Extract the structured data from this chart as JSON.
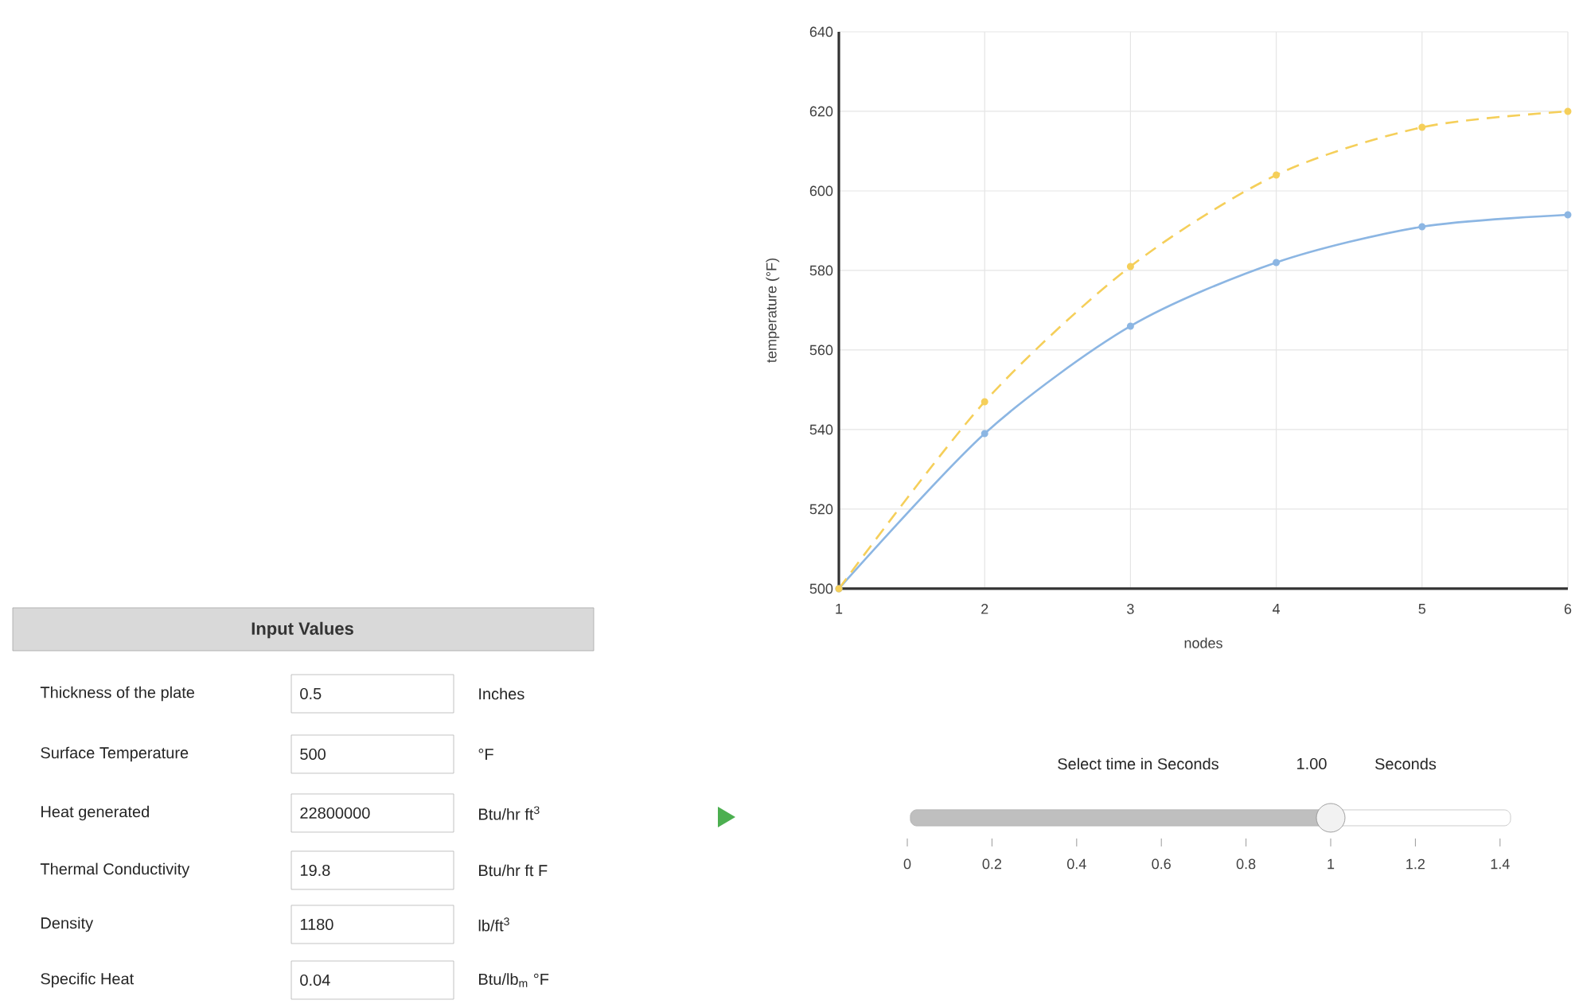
{
  "chart_data": {
    "type": "line",
    "xlabel": "nodes",
    "ylabel": "temperature (°F)",
    "x": [
      1,
      2,
      3,
      4,
      5,
      6
    ],
    "series": [
      {
        "color": "#f5cf5a",
        "line_style": "dashed",
        "values": [
          500,
          547,
          581,
          604,
          616,
          620
        ]
      },
      {
        "color": "#8cb6e3",
        "line_style": "solid",
        "values": [
          500,
          539,
          566,
          582,
          591,
          594
        ]
      }
    ],
    "xlim": [
      1,
      6
    ],
    "xticks": [
      1,
      2,
      3,
      4,
      5,
      6
    ],
    "ylim": [
      500,
      640
    ],
    "yticks": [
      500,
      520,
      540,
      560,
      580,
      600,
      620,
      640
    ],
    "grid": true,
    "marker": "circle",
    "annotations": [
      "Input Values",
      "Thickness of the plate",
      "0.5",
      "Inches",
      "Surface Temperature",
      "500",
      "°F",
      "Heat generated",
      "22800000",
      "Btu/hr ft$^{3}$",
      "Thermal Conductivity",
      "19.8",
      "Btu/hr ft F",
      "Density",
      "1180",
      "lb/ft$^{3}$",
      "Specific Heat",
      "0.04",
      "Btu/lb$_{m}$ °F",
      "Select time in Seconds",
      "1.00",
      "Seconds",
      "0",
      "0.2",
      "0.4",
      "0.6",
      "0.8",
      "1",
      "1.2",
      "1.4"
    ]
  }
}
